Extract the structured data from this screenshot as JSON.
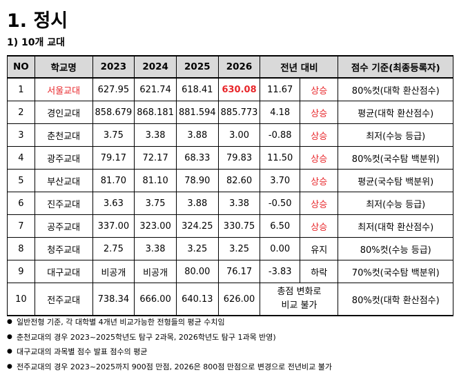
{
  "title": "1. 정시",
  "subtitle": "1) 10개 교대",
  "table": {
    "headers": [
      "NO",
      "학교명",
      "2023",
      "2024",
      "2025",
      "2026",
      "전년 대비",
      "점수 기준(최종등록자)"
    ],
    "rows": [
      {
        "no": "1",
        "school": "서울교대",
        "y2023": "627.95",
        "y2024": "621.74",
        "y2025": "618.41",
        "y2026": "630.08",
        "diff": "11.67",
        "trend": "상승",
        "basis": "80%컷(대학 환산점수)"
      },
      {
        "no": "2",
        "school": "경인교대",
        "y2023": "858.679",
        "y2024": "868.181",
        "y2025": "881.594",
        "y2026": "885.773",
        "diff": "4.18",
        "trend": "상승",
        "basis": "평균(대학 환산점수)"
      },
      {
        "no": "3",
        "school": "춘천교대",
        "y2023": "3.75",
        "y2024": "3.38",
        "y2025": "3.88",
        "y2026": "3.00",
        "diff": "-0.88",
        "trend": "상승",
        "basis": "최저(수능 등급)"
      },
      {
        "no": "4",
        "school": "광주교대",
        "y2023": "79.17",
        "y2024": "72.17",
        "y2025": "68.33",
        "y2026": "79.83",
        "diff": "11.50",
        "trend": "상승",
        "basis": "80%컷(국수탐 백분위)"
      },
      {
        "no": "5",
        "school": "부산교대",
        "y2023": "81.70",
        "y2024": "81.10",
        "y2025": "78.90",
        "y2026": "82.60",
        "diff": "3.70",
        "trend": "상승",
        "basis": "평균(국수탐 백분위)"
      },
      {
        "no": "6",
        "school": "진주교대",
        "y2023": "3.63",
        "y2024": "3.75",
        "y2025": "3.88",
        "y2026": "3.38",
        "diff": "-0.50",
        "trend": "상승",
        "basis": "최저(수능 등급)"
      },
      {
        "no": "7",
        "school": "공주교대",
        "y2023": "337.00",
        "y2024": "323.00",
        "y2025": "324.25",
        "y2026": "330.75",
        "diff": "6.50",
        "trend": "상승",
        "basis": "최저(대학 환산점수)"
      },
      {
        "no": "8",
        "school": "청주교대",
        "y2023": "2.75",
        "y2024": "3.38",
        "y2025": "3.25",
        "y2026": "3.25",
        "diff": "0.00",
        "trend": "유지",
        "basis": "80%컷(수능 등급)"
      },
      {
        "no": "9",
        "school": "대구교대",
        "y2023": "비공개",
        "y2024": "비공개",
        "y2025": "80.00",
        "y2026": "76.17",
        "diff": "-3.83",
        "trend": "하락",
        "basis": "70%컷(국수탐 백분위)"
      },
      {
        "no": "10",
        "school": "전주교대",
        "y2023": "738.34",
        "y2024": "666.00",
        "y2025": "640.13",
        "y2026": "626.00",
        "merged_line1": "총점 변화로",
        "merged_line2": "비교 불가",
        "basis": "80%컷(대학 환산점수)"
      }
    ]
  },
  "colors": {
    "highlight": "#e8262a",
    "header_bg": "#d9d9d9"
  },
  "notes": [
    "일반전형 기준, 각 대학별 4개년 비교가능한 전형들의 평균 수치임",
    "춘천교대의 경우 2023~2025학년도 탐구 2과목, 2026학년도 탐구 1과목 반영)",
    "대구교대의 과목별 점수 발표 점수의 평균",
    "전주교대의 경우 2023~2025까지 900점 만점, 2026은 800점 만점으로 변경으로 전년비교 불가"
  ]
}
